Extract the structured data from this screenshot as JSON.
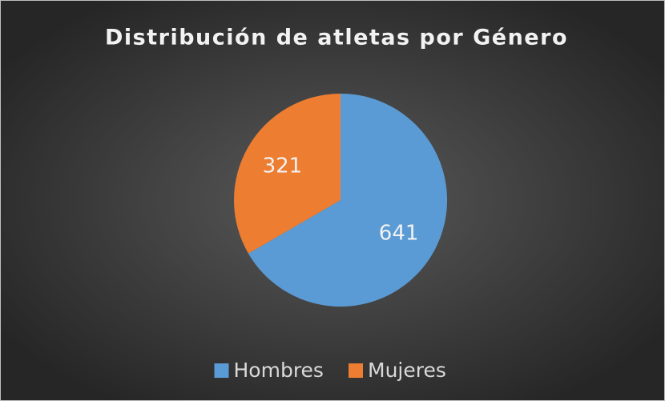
{
  "chart_data": {
    "type": "pie",
    "title": "Distribución de atletas por Género",
    "categories": [
      "Hombres",
      "Mujeres"
    ],
    "values": [
      641,
      321
    ],
    "colors": [
      "#5b9bd5",
      "#ed7d31"
    ],
    "legend": "bottom"
  }
}
